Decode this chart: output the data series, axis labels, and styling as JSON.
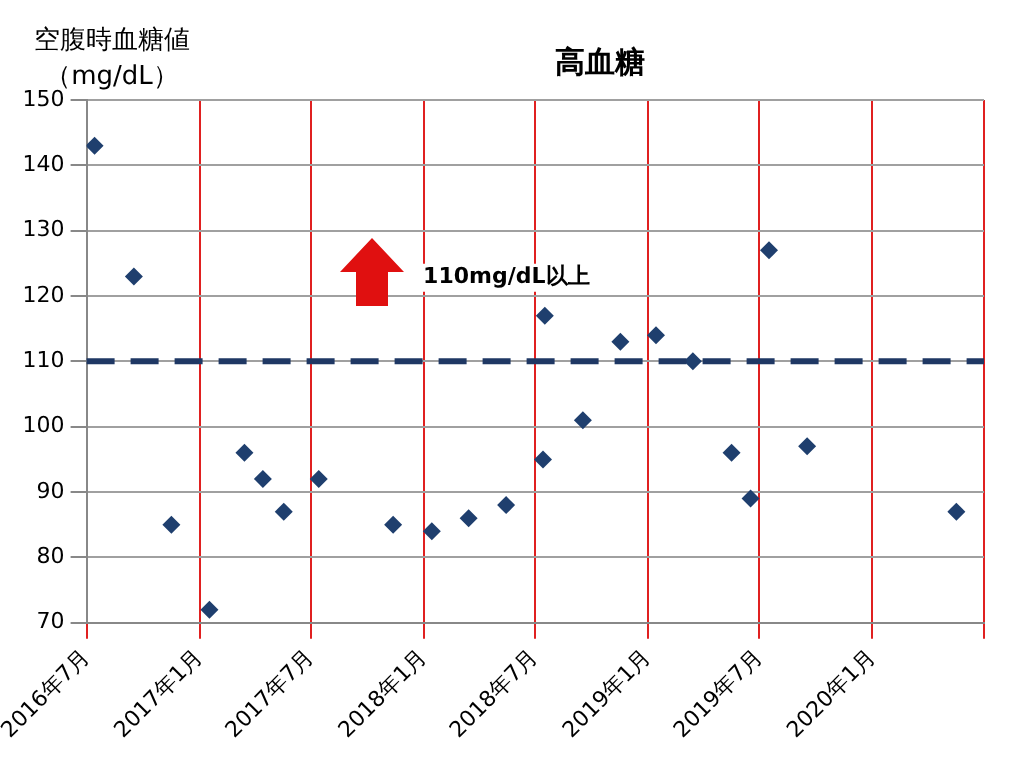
{
  "chart_data": {
    "type": "scatter",
    "title": "高血糖",
    "ylabel": "空腹時血糖値（mg/dL）",
    "x": [
      "2016-07-14",
      "2016-09-16",
      "2016-11-16",
      "2017-01-17",
      "2017-03-15",
      "2017-04-14",
      "2017-05-18",
      "2017-07-14",
      "2017-11-12",
      "2018-01-14",
      "2018-03-15",
      "2018-05-15",
      "2018-07-14",
      "2018-07-17",
      "2018-09-17",
      "2018-11-17",
      "2019-01-14",
      "2019-03-15",
      "2019-05-17",
      "2019-06-17",
      "2019-07-17",
      "2019-09-17",
      "2020-05-17"
    ],
    "series": [
      {
        "color": "#1f3f6e",
        "values": [
          143,
          123,
          85,
          72,
          96,
          92,
          87,
          92,
          85,
          84,
          86,
          88,
          95,
          117,
          101,
          113,
          114,
          110,
          96,
          89,
          127,
          97,
          87
        ]
      }
    ],
    "xlim": [
      "2016-07",
      "2020-07"
    ],
    "xticks": [
      {
        "value": "2016-07",
        "label": "2016年7月"
      },
      {
        "value": "2017-01",
        "label": "2017年1月"
      },
      {
        "value": "2017-07",
        "label": "2017年7月"
      },
      {
        "value": "2018-01",
        "label": "2018年1月"
      },
      {
        "value": "2018-07",
        "label": "2018年7月"
      },
      {
        "value": "2019-01",
        "label": "2019年1月"
      },
      {
        "value": "2019-07",
        "label": "2019年7月"
      },
      {
        "value": "2020-01",
        "label": "2020年1月"
      },
      {
        "value": "2020-07",
        "label": null
      }
    ],
    "ylim": [
      70,
      150
    ],
    "yticks": [
      70,
      80,
      90,
      100,
      110,
      120,
      130,
      140,
      150
    ],
    "ref_lines": [
      {
        "axis": "y",
        "value": 110,
        "color": "#1f3864",
        "line_style": "dashed"
      }
    ],
    "annotations": [
      "110mg/dL以上"
    ],
    "grid": true,
    "legend": false,
    "marker": "diamond"
  }
}
